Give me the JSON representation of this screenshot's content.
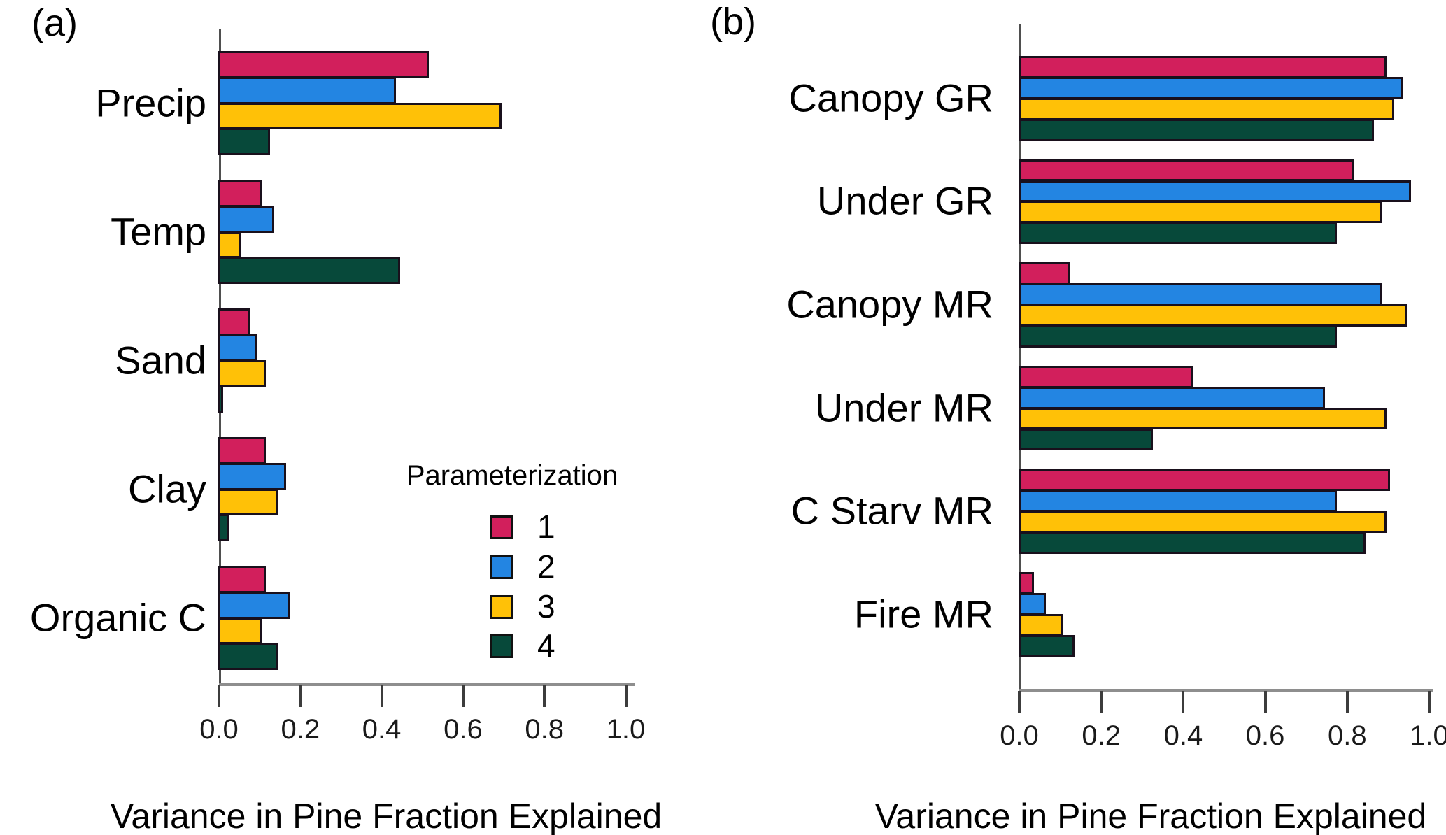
{
  "figure": {
    "panel_a_label": "(a)",
    "panel_b_label": "(b)",
    "axis_title_a": "Variance in Pine Fraction Explained",
    "axis_title_b": "Variance in Pine Fraction Explained"
  },
  "legend": {
    "title": "Parameterization",
    "items": [
      {
        "label": "1",
        "color": "#D21F5C"
      },
      {
        "label": "2",
        "color": "#2385E2"
      },
      {
        "label": "3",
        "color": "#FFC107"
      },
      {
        "label": "4",
        "color": "#07493A"
      }
    ]
  },
  "colors": {
    "parameterization_1": "#D21F5C",
    "parameterization_2": "#2385E2",
    "parameterization_3": "#FFC107",
    "parameterization_4": "#07493A",
    "bar_border": "#19101c",
    "axis_line": "#8e8e8e"
  },
  "chart_data": [
    {
      "type": "bar",
      "orientation": "horizontal",
      "panel": "a",
      "panel_label": "(a)",
      "title": "",
      "xlabel": "Variance in Pine Fraction Explained",
      "ylabel": "",
      "xlim": [
        0.0,
        1.0
      ],
      "grid": false,
      "tick_labels": [
        "0.0",
        "0.2",
        "0.4",
        "0.6",
        "0.8",
        "1.0"
      ],
      "tick_values": [
        0.0,
        0.2,
        0.4,
        0.6,
        0.8,
        1.0
      ],
      "categories": [
        "Precip",
        "Temp",
        "Sand",
        "Clay",
        "Organic C"
      ],
      "series": [
        {
          "name": "1",
          "color": "#D21F5C",
          "values": [
            0.51,
            0.1,
            0.07,
            0.11,
            0.11
          ]
        },
        {
          "name": "2",
          "color": "#2385E2",
          "values": [
            0.43,
            0.13,
            0.09,
            0.16,
            0.17
          ]
        },
        {
          "name": "3",
          "color": "#FFC107",
          "values": [
            0.69,
            0.05,
            0.11,
            0.14,
            0.1
          ]
        },
        {
          "name": "4",
          "color": "#07493A",
          "values": [
            0.12,
            0.44,
            0.005,
            0.02,
            0.14
          ]
        }
      ]
    },
    {
      "type": "bar",
      "orientation": "horizontal",
      "panel": "b",
      "panel_label": "(b)",
      "title": "",
      "xlabel": "Variance in Pine Fraction Explained",
      "ylabel": "",
      "xlim": [
        0.0,
        1.0
      ],
      "grid": false,
      "tick_labels": [
        "0.0",
        "0.2",
        "0.4",
        "0.6",
        "0.8",
        "1.0"
      ],
      "tick_values": [
        0.0,
        0.2,
        0.4,
        0.6,
        0.8,
        1.0
      ],
      "categories": [
        "Canopy GR",
        "Under GR",
        "Canopy MR",
        "Under MR",
        "C Starv MR",
        "Fire MR"
      ],
      "series": [
        {
          "name": "1",
          "color": "#D21F5C",
          "values": [
            0.89,
            0.81,
            0.12,
            0.42,
            0.9,
            0.03
          ]
        },
        {
          "name": "2",
          "color": "#2385E2",
          "values": [
            0.93,
            0.95,
            0.88,
            0.74,
            0.77,
            0.06
          ]
        },
        {
          "name": "3",
          "color": "#FFC107",
          "values": [
            0.91,
            0.88,
            0.94,
            0.89,
            0.89,
            0.1
          ]
        },
        {
          "name": "4",
          "color": "#07493A",
          "values": [
            0.86,
            0.77,
            0.77,
            0.32,
            0.84,
            0.13
          ]
        }
      ]
    }
  ]
}
